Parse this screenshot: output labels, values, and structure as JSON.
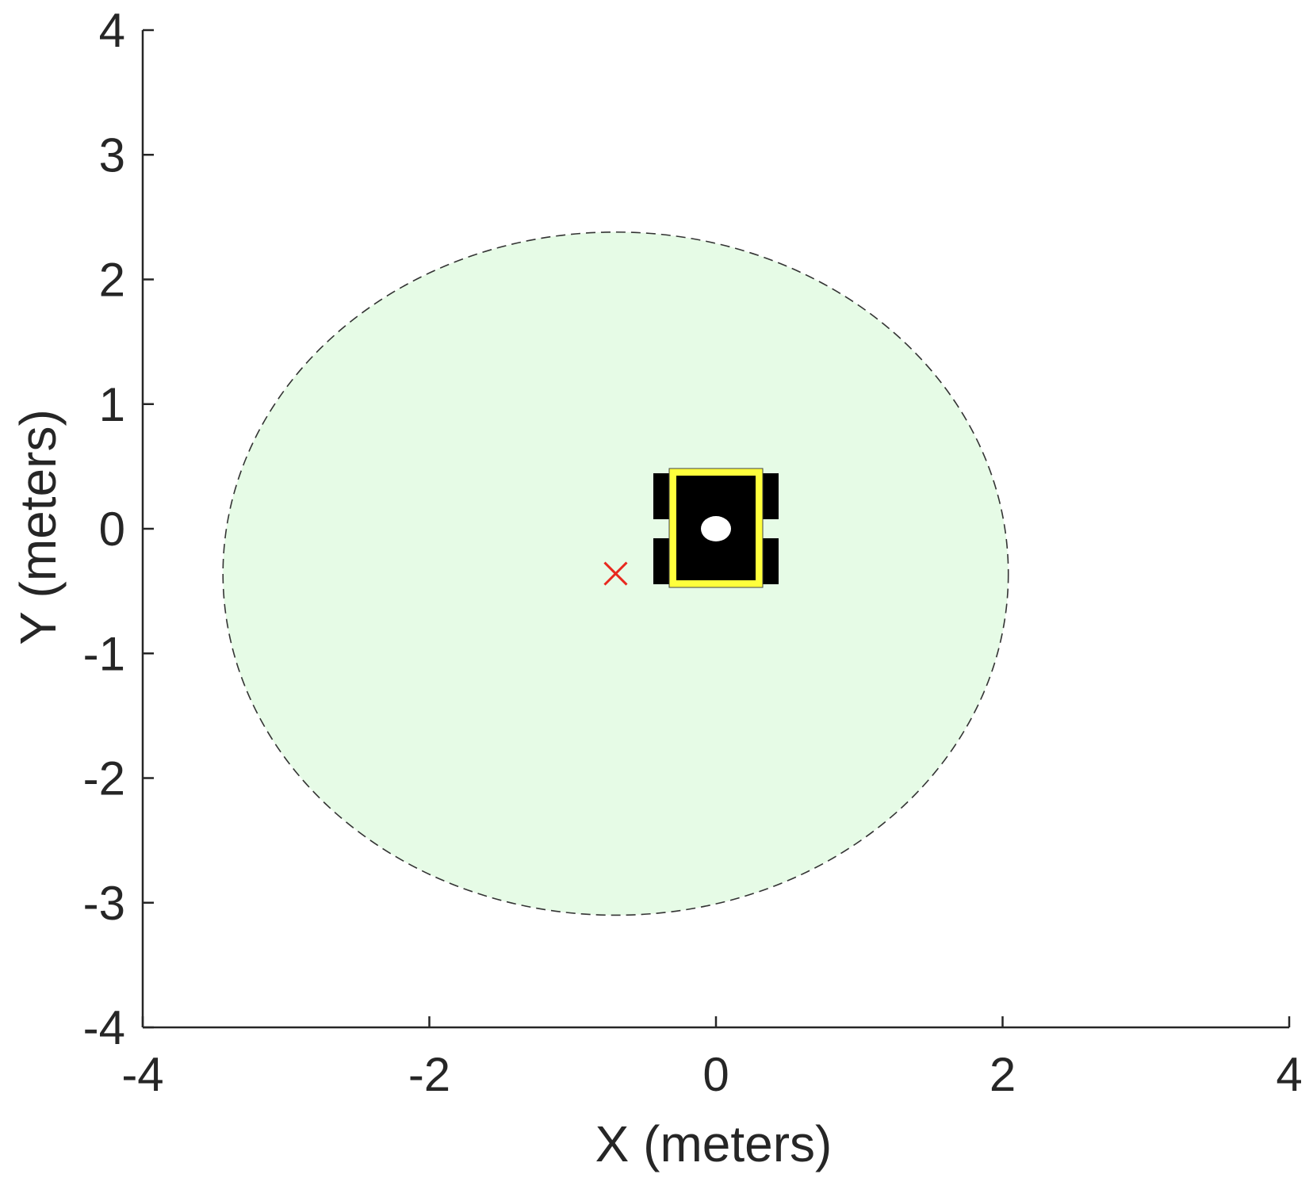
{
  "chart_data": {
    "type": "scatter",
    "xlabel": "X (meters)",
    "ylabel": "Y (meters)",
    "xlim": [
      -4,
      4
    ],
    "ylim": [
      -4,
      4
    ],
    "x_ticks": [
      -4,
      -2,
      0,
      2,
      4
    ],
    "x_tick_labels": [
      "-4",
      "-2",
      "0",
      "2",
      "4"
    ],
    "y_ticks": [
      -4,
      -3,
      -2,
      -1,
      0,
      1,
      2,
      3,
      4
    ],
    "y_tick_labels": [
      "-4",
      "-3",
      "-2",
      "-1",
      "0",
      "1",
      "2",
      "3",
      "4"
    ],
    "grid": false,
    "region": {
      "shape": "ellipse",
      "center": [
        -0.7,
        -0.36
      ],
      "semi_axes": [
        2.74,
        2.74
      ],
      "fill_color": "#e6fbe6",
      "edge_color": "#333333",
      "edge_style": "dashed"
    },
    "marker": {
      "shape": "x",
      "x": -0.7,
      "y": -0.36,
      "color": "#e8281e"
    },
    "robot": {
      "center": [
        0.0,
        0.0
      ],
      "body_color": "#000000",
      "frame_color": "#ffff3c",
      "sensor_color": "#ffffff"
    }
  }
}
